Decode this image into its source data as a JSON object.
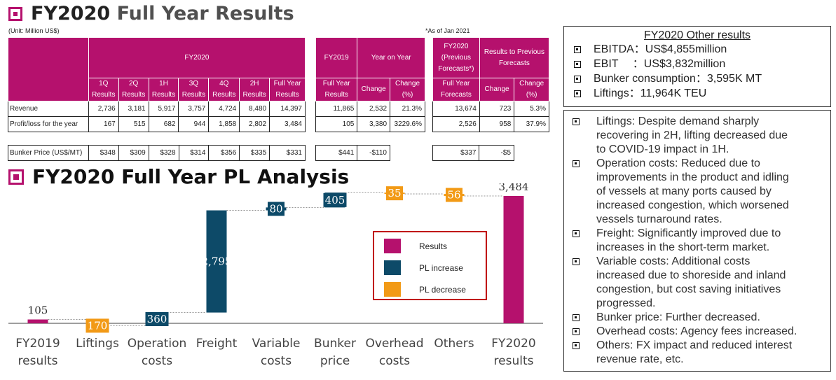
{
  "title1": {
    "main": "FY2020",
    "sub": "Full Year Results"
  },
  "unit_note": "(Unit: Million US$)",
  "asof_note": "*As of Jan 2021",
  "table1": {
    "group_header": "FY2020",
    "cols": [
      "1Q Results",
      "2Q Results",
      "1H Results",
      "3Q Results",
      "4Q Results",
      "2H Results",
      "Full Year Results"
    ],
    "rows": [
      {
        "label": "Revenue",
        "values": [
          "2,736",
          "3,181",
          "5,917",
          "3,757",
          "4,724",
          "8,480",
          "14,397"
        ]
      },
      {
        "label": "Profit/loss for the year",
        "values": [
          "167",
          "515",
          "682",
          "944",
          "1,858",
          "2,802",
          "3,484"
        ]
      }
    ],
    "bunker": {
      "label": "Bunker Price (US$/MT)",
      "values": [
        "$348",
        "$309",
        "$328",
        "$314",
        "$356",
        "$335",
        "$331"
      ]
    }
  },
  "table2": {
    "fy2019_header": "FY2019",
    "yoy_header": "Year on Year",
    "cols": [
      "Full Year Results",
      "Change",
      "Change (%)"
    ],
    "rows": [
      [
        "11,865",
        "2,532",
        "21.3%"
      ],
      [
        "105",
        "3,380",
        "3229.6%"
      ]
    ],
    "bunker": [
      "$441",
      "-$110"
    ]
  },
  "table3": {
    "fc_header": "FY2020 (Previous Forecasts*)",
    "diff_header": "Results to Previous Forecasts",
    "cols": [
      "Full Year Forecasts",
      "Change",
      "Change (%)"
    ],
    "rows": [
      [
        "13,674",
        "723",
        "5.3%"
      ],
      [
        "2,526",
        "958",
        "37.9%"
      ]
    ],
    "bunker": [
      "$337",
      "-$5"
    ]
  },
  "title2": "FY2020 Full Year PL Analysis",
  "chart_data": {
    "type": "bar",
    "subtype": "waterfall",
    "categories": [
      "FY2019 results",
      "Liftings",
      "Operation costs",
      "Freight",
      "Variable costs",
      "Bunker price",
      "Overhead costs",
      "Others",
      "FY2020 results"
    ],
    "category_lines": [
      [
        "FY2019",
        "results"
      ],
      [
        "Liftings"
      ],
      [
        "Operation",
        "costs"
      ],
      [
        "Freight"
      ],
      [
        "Variable",
        "costs"
      ],
      [
        "Bunker",
        "price"
      ],
      [
        "Overhead",
        "costs"
      ],
      [
        "Others"
      ],
      [
        "FY2020",
        "results"
      ]
    ],
    "steps": [
      {
        "kind": "result",
        "value": 105,
        "label": "105"
      },
      {
        "kind": "decrease",
        "value": -170,
        "label": "170"
      },
      {
        "kind": "increase",
        "value": 360,
        "label": "360"
      },
      {
        "kind": "increase",
        "value": 2795,
        "label": "2,795"
      },
      {
        "kind": "increase",
        "value": 80,
        "label": "80"
      },
      {
        "kind": "increase",
        "value": 405,
        "label": "405"
      },
      {
        "kind": "decrease",
        "value": -35,
        "label": "35"
      },
      {
        "kind": "decrease",
        "value": -56,
        "label": "56"
      },
      {
        "kind": "result",
        "value": 3484,
        "label": "3,484"
      }
    ],
    "legend": [
      {
        "label": "Results",
        "color": "#b5116d"
      },
      {
        "label": "PL increase",
        "color": "#0d4a68"
      },
      {
        "label": "PL decrease",
        "color": "#f29a16"
      }
    ],
    "legend_position": "center-right",
    "colors": {
      "result": "#b5116d",
      "increase": "#0d4a68",
      "decrease": "#f29a16"
    }
  },
  "other_results": {
    "heading": "FY2020 Other results",
    "items": [
      "EBITDA：US$4,855million",
      "EBIT　 ：US$3,832million",
      "Bunker consumption：3,595K MT",
      "Liftings：11,964K TEU"
    ]
  },
  "notes": {
    "items": [
      [
        "Liftings: Despite demand sharply",
        "recovering in 2H, lifting decreased due",
        "to COVID-19 impact in 1H."
      ],
      [
        "Operation costs: Reduced due to",
        "improvements in the product and idling",
        "of vessels at many ports caused by",
        "increased congestion, which worsened",
        "vessels turnaround rates."
      ],
      [
        "Freight: Significantly improved due to",
        "increases in the short-term market."
      ],
      [
        "Variable costs: Additional costs",
        "increased due to shoreside and inland",
        "congestion, but cost saving initiatives",
        "progressed."
      ],
      [
        "Bunker price: Further decreased."
      ],
      [
        "Overhead costs: Agency fees increased."
      ],
      [
        "Others: FX impact and reduced interest",
        "revenue rate, etc."
      ]
    ]
  },
  "checkbox_icon": "checkbox-bullet-icon",
  "accent": "#b5116d"
}
